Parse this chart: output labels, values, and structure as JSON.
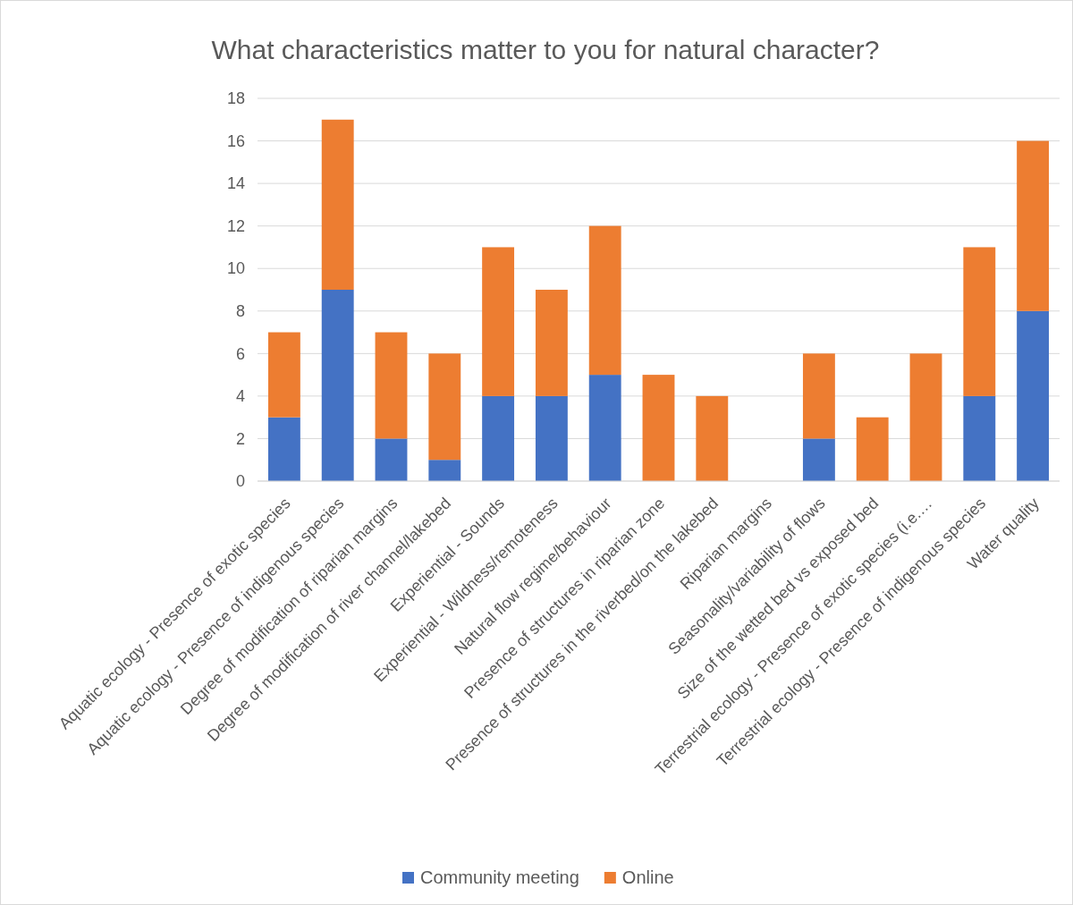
{
  "chart_data": {
    "type": "bar",
    "title": "What characteristics matter to you for natural character?",
    "categories": [
      "Aquatic ecology - Presence of exotic species",
      "Aquatic ecology - Presence of indigenous species",
      "Degree of modification of riparian margins",
      "Degree of modification of river channel/lakebed",
      "Experiential - Sounds",
      "Experiential - Wildness/remoteness",
      "Natural flow regime/behaviour",
      "Presence of structures in riparian zone",
      "Presence of structures in the riverbed/on the lakebed",
      "Riparian margins",
      "Seasonality/variability of flows",
      "Size of the wetted bed vs exposed bed",
      "Terrestrial ecology - Presence of exotic species (i.e.…",
      "Terrestrial ecology - Presence of indigenous species",
      "Water quality"
    ],
    "series": [
      {
        "name": "Community meeting",
        "color": "#4472c4",
        "values": [
          3,
          9,
          2,
          1,
          4,
          4,
          5,
          0,
          0,
          0,
          2,
          0,
          0,
          4,
          8
        ]
      },
      {
        "name": "Online",
        "color": "#ed7d31",
        "values": [
          4,
          8,
          5,
          5,
          7,
          5,
          7,
          5,
          4,
          0,
          4,
          3,
          6,
          7,
          8
        ]
      }
    ],
    "stacked": true,
    "ylim": [
      0,
      18
    ],
    "yticks": [
      0,
      2,
      4,
      6,
      8,
      10,
      12,
      14,
      16,
      18
    ],
    "grid": "y",
    "legend": "bottom"
  }
}
